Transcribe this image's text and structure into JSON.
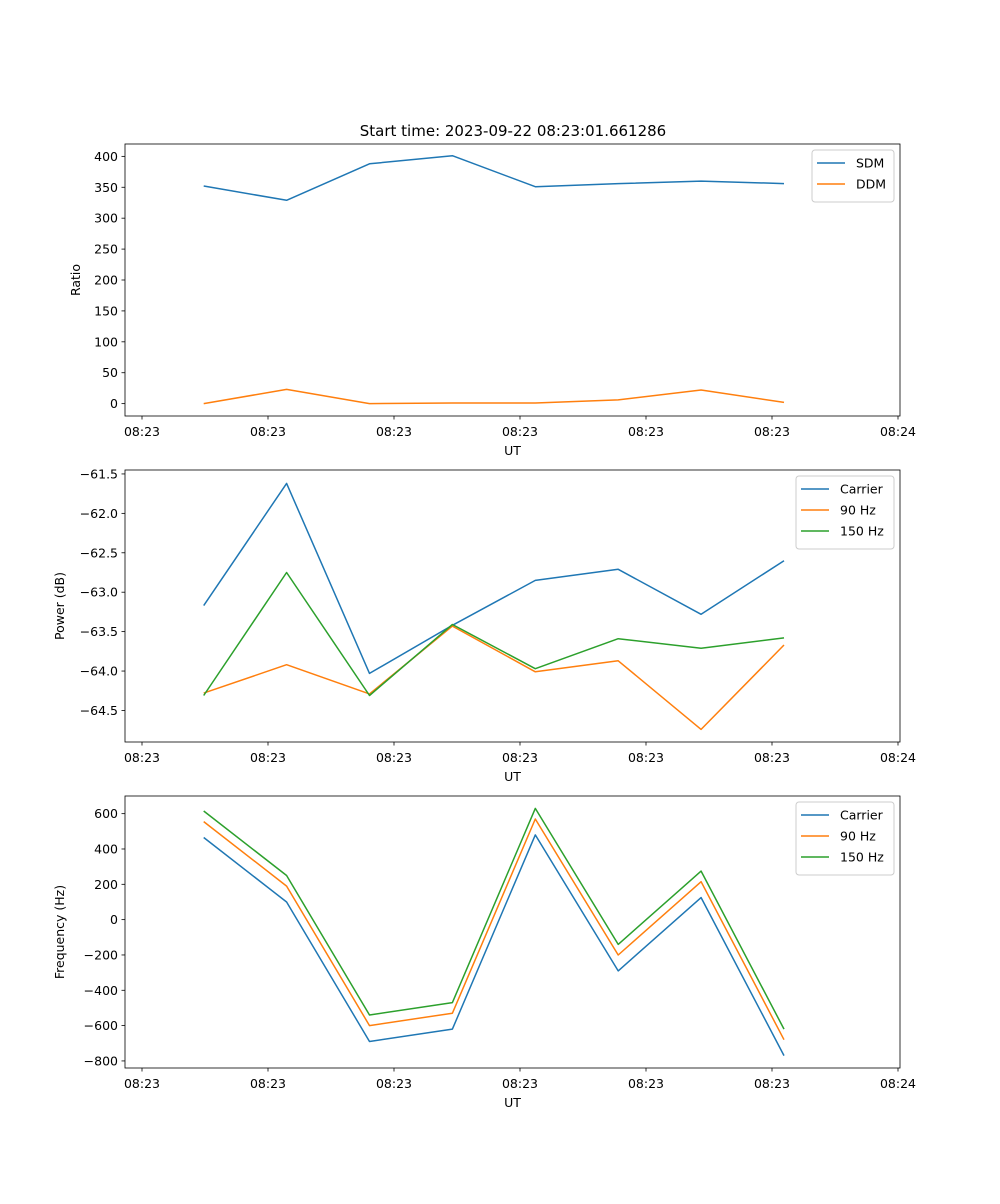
{
  "title": "Start time: 2023-09-22 08:23:01.661286",
  "colors": {
    "c0": "#1f77b4",
    "c1": "#ff7f0e",
    "c2": "#2ca02c"
  },
  "x_tick_labels": [
    "08:23",
    "08:23",
    "08:23",
    "08:23",
    "08:23",
    "08:23",
    "08:24"
  ],
  "chart_data": [
    {
      "type": "line",
      "name": "ratio",
      "title": "Start time: 2023-09-22 08:23:01.661286",
      "xlabel": "UT",
      "ylabel": "Ratio",
      "x": [
        1,
        2,
        3,
        4,
        5,
        6,
        7,
        8
      ],
      "xlim": [
        0.05,
        9.4
      ],
      "ylim": [
        -20,
        420
      ],
      "yticks": [
        0,
        50,
        100,
        150,
        200,
        250,
        300,
        350,
        400
      ],
      "ytick_labels": [
        "0",
        "50",
        "100",
        "150",
        "200",
        "250",
        "300",
        "350",
        "400"
      ],
      "legend": "top-right",
      "series": [
        {
          "name": "SDM",
          "color": "#1f77b4",
          "values": [
            352,
            329,
            388,
            401,
            351,
            356,
            360,
            356
          ]
        },
        {
          "name": "DDM",
          "color": "#ff7f0e",
          "values": [
            0,
            23,
            0,
            1,
            1,
            6,
            22,
            2
          ]
        }
      ]
    },
    {
      "type": "line",
      "name": "power",
      "xlabel": "UT",
      "ylabel": "Power (dB)",
      "x": [
        1,
        2,
        3,
        4,
        5,
        6,
        7,
        8
      ],
      "xlim": [
        0.05,
        9.4
      ],
      "ylim": [
        -64.9,
        -61.45
      ],
      "yticks": [
        -64.5,
        -64.0,
        -63.5,
        -63.0,
        -62.5,
        -62.0,
        -61.5
      ],
      "ytick_labels": [
        "−64.5",
        "−64.0",
        "−63.5",
        "−63.0",
        "−62.5",
        "−62.0",
        "−61.5"
      ],
      "legend": "top-right",
      "series": [
        {
          "name": "Carrier",
          "color": "#1f77b4",
          "values": [
            -63.17,
            -61.62,
            -64.03,
            -63.42,
            -62.85,
            -62.71,
            -63.28,
            -62.6
          ]
        },
        {
          "name": "90 Hz",
          "color": "#ff7f0e",
          "values": [
            -64.28,
            -63.92,
            -64.29,
            -63.43,
            -64.01,
            -63.87,
            -64.74,
            -63.67
          ]
        },
        {
          "name": "150 Hz",
          "color": "#2ca02c",
          "values": [
            -64.31,
            -62.75,
            -64.31,
            -63.41,
            -63.97,
            -63.59,
            -63.71,
            -63.58
          ]
        }
      ]
    },
    {
      "type": "line",
      "name": "frequency",
      "xlabel": "UT",
      "ylabel": "Frequency (Hz)",
      "x": [
        1,
        2,
        3,
        4,
        5,
        6,
        7,
        8
      ],
      "xlim": [
        0.05,
        9.4
      ],
      "ylim": [
        -840,
        700
      ],
      "yticks": [
        -800,
        -600,
        -400,
        -200,
        0,
        200,
        400,
        600
      ],
      "ytick_labels": [
        "−800",
        "−600",
        "−400",
        "−200",
        "0",
        "200",
        "400",
        "600"
      ],
      "legend": "top-right",
      "series": [
        {
          "name": "Carrier",
          "color": "#1f77b4",
          "values": [
            465,
            100,
            -690,
            -620,
            480,
            -290,
            125,
            -770
          ]
        },
        {
          "name": "90 Hz",
          "color": "#ff7f0e",
          "values": [
            555,
            190,
            -600,
            -530,
            570,
            -200,
            215,
            -680
          ]
        },
        {
          "name": "150 Hz",
          "color": "#2ca02c",
          "values": [
            615,
            250,
            -540,
            -470,
            630,
            -140,
            275,
            -620
          ]
        }
      ]
    }
  ]
}
